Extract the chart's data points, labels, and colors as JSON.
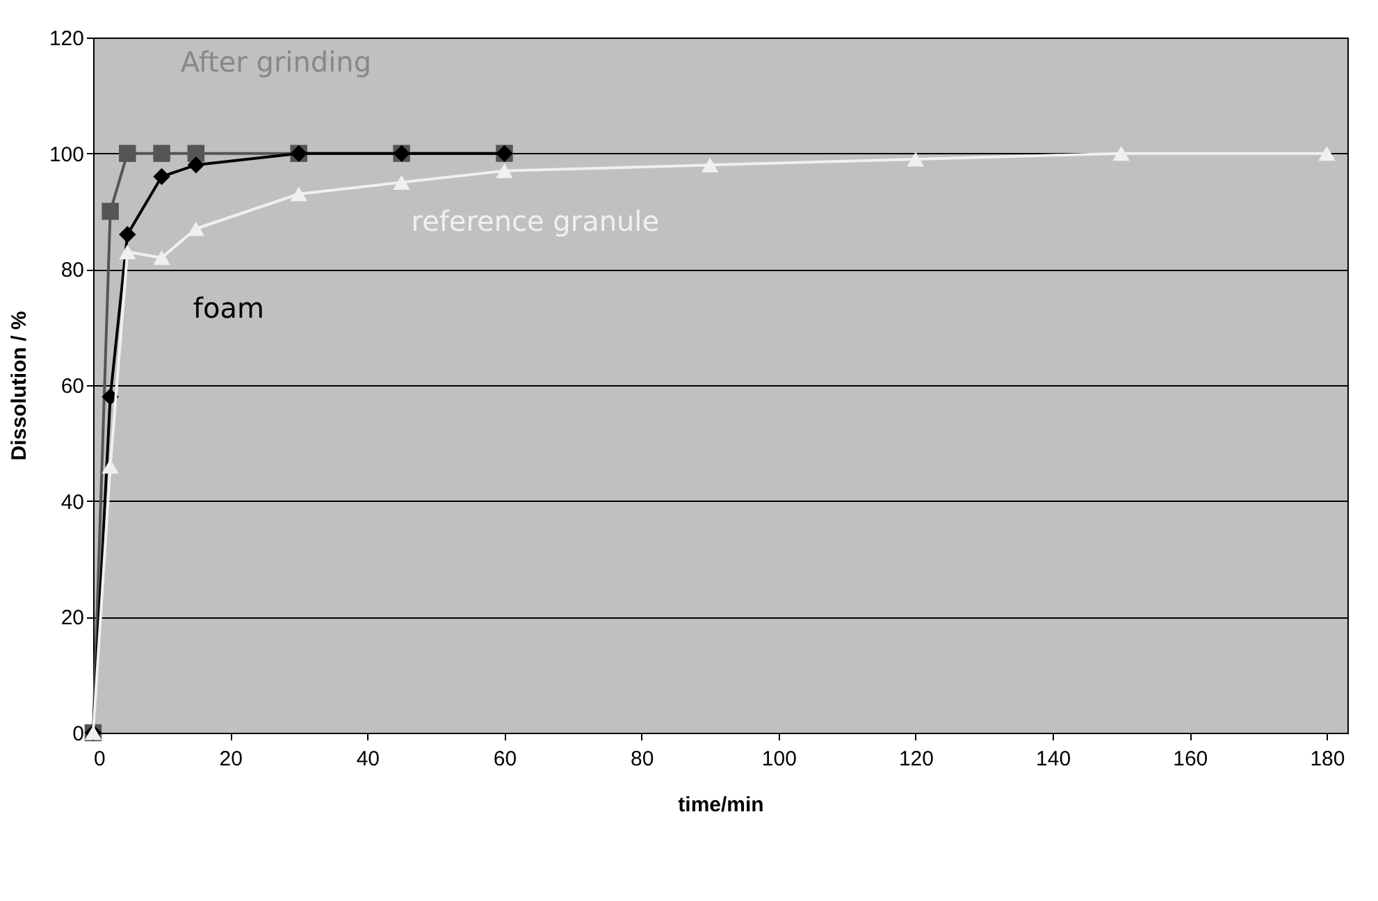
{
  "chart_data": {
    "type": "line",
    "xlabel": "time/min",
    "ylabel": "Dissolution / %",
    "xlim": [
      0,
      183
    ],
    "xticks": [
      0,
      20,
      40,
      60,
      80,
      100,
      120,
      140,
      160,
      180
    ],
    "ylim": [
      0,
      120
    ],
    "yticks": [
      0,
      20,
      40,
      60,
      80,
      100,
      120
    ],
    "grid": "y",
    "legend": false,
    "series": [
      {
        "name": "After grinding",
        "color": "#555555",
        "marker": "square",
        "x": [
          0,
          2.5,
          5,
          10,
          15,
          30,
          45,
          60
        ],
        "values": [
          0,
          90,
          100,
          100,
          100,
          100,
          100,
          100
        ]
      },
      {
        "name": "foam",
        "color": "#000000",
        "marker": "diamond",
        "x": [
          0,
          2.5,
          5,
          10,
          15,
          30,
          45,
          60
        ],
        "values": [
          0,
          58,
          86,
          96,
          98,
          100,
          100,
          100
        ]
      },
      {
        "name": "reference granule",
        "color": "#f0f0f0",
        "marker": "triangle",
        "x": [
          0,
          2.5,
          5,
          10,
          15,
          30,
          45,
          60,
          90,
          120,
          150,
          180
        ],
        "values": [
          0,
          46,
          83,
          82,
          87,
          93,
          95,
          97,
          98,
          99,
          100,
          100
        ]
      }
    ]
  }
}
